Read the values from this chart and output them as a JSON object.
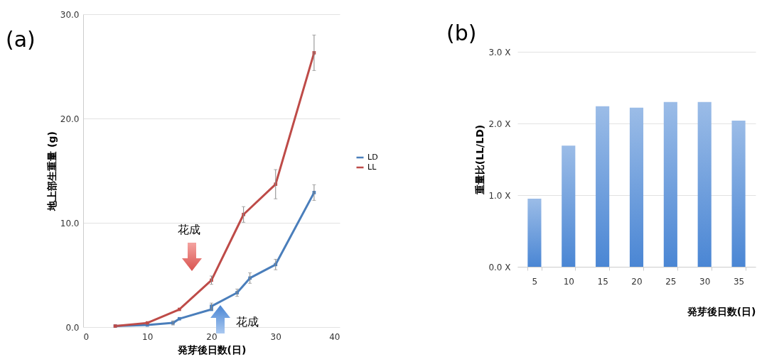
{
  "chart_data": [
    {
      "type": "line",
      "title": "(a)",
      "xlabel": "発芽後日数(日)",
      "ylabel": "地上部生重量 (g)",
      "series": [
        {
          "name": "LD",
          "color": "#4a7ebb",
          "x": [
            5,
            10,
            14,
            15,
            20,
            20,
            24,
            26,
            30,
            36
          ],
          "values": [
            0.1,
            0.2,
            0.4,
            0.8,
            1.7,
            2.0,
            3.3,
            4.7,
            6.0,
            12.9
          ],
          "errors": [
            null,
            null,
            0.2,
            null,
            null,
            0.3,
            0.35,
            0.5,
            0.5,
            0.75
          ]
        },
        {
          "name": "LL",
          "color": "#be4b48",
          "x": [
            5,
            10,
            15,
            20,
            25,
            30,
            36
          ],
          "values": [
            0.1,
            0.4,
            1.7,
            4.5,
            10.8,
            13.7,
            26.3
          ],
          "errors": [
            null,
            null,
            null,
            0.4,
            0.75,
            1.4,
            1.7
          ]
        }
      ],
      "xlim": [
        0,
        40
      ],
      "xticks": [
        0,
        10,
        20,
        30,
        40
      ],
      "ylim": [
        0,
        30
      ],
      "yticks": [
        {
          "value": 0,
          "label": "0.0"
        },
        {
          "value": 10,
          "label": "10.0"
        },
        {
          "value": 20,
          "label": "20.0"
        },
        {
          "value": 30,
          "label": "30.0"
        }
      ],
      "annotations": [
        "花成",
        "花成"
      ],
      "grid": "y",
      "legend": "right",
      "marker": "square",
      "line_style": "solid"
    },
    {
      "type": "bar",
      "title": "(b)",
      "xlabel": "発芽後日数(日)",
      "ylabel": "重量比(LL/LD)",
      "categories": [
        "5",
        "10",
        "15",
        "20",
        "25",
        "30",
        "35"
      ],
      "values": [
        0.95,
        1.69,
        2.24,
        2.22,
        2.3,
        2.3,
        2.04
      ],
      "color": "#4a86d4",
      "ylim": [
        0,
        3
      ],
      "yticks": [
        {
          "value": 0,
          "label": "0.0 X"
        },
        {
          "value": 1,
          "label": "1.0 X"
        },
        {
          "value": 2,
          "label": "2.0 X"
        },
        {
          "value": 3,
          "label": "3.0 X"
        }
      ],
      "grid": "y"
    }
  ]
}
